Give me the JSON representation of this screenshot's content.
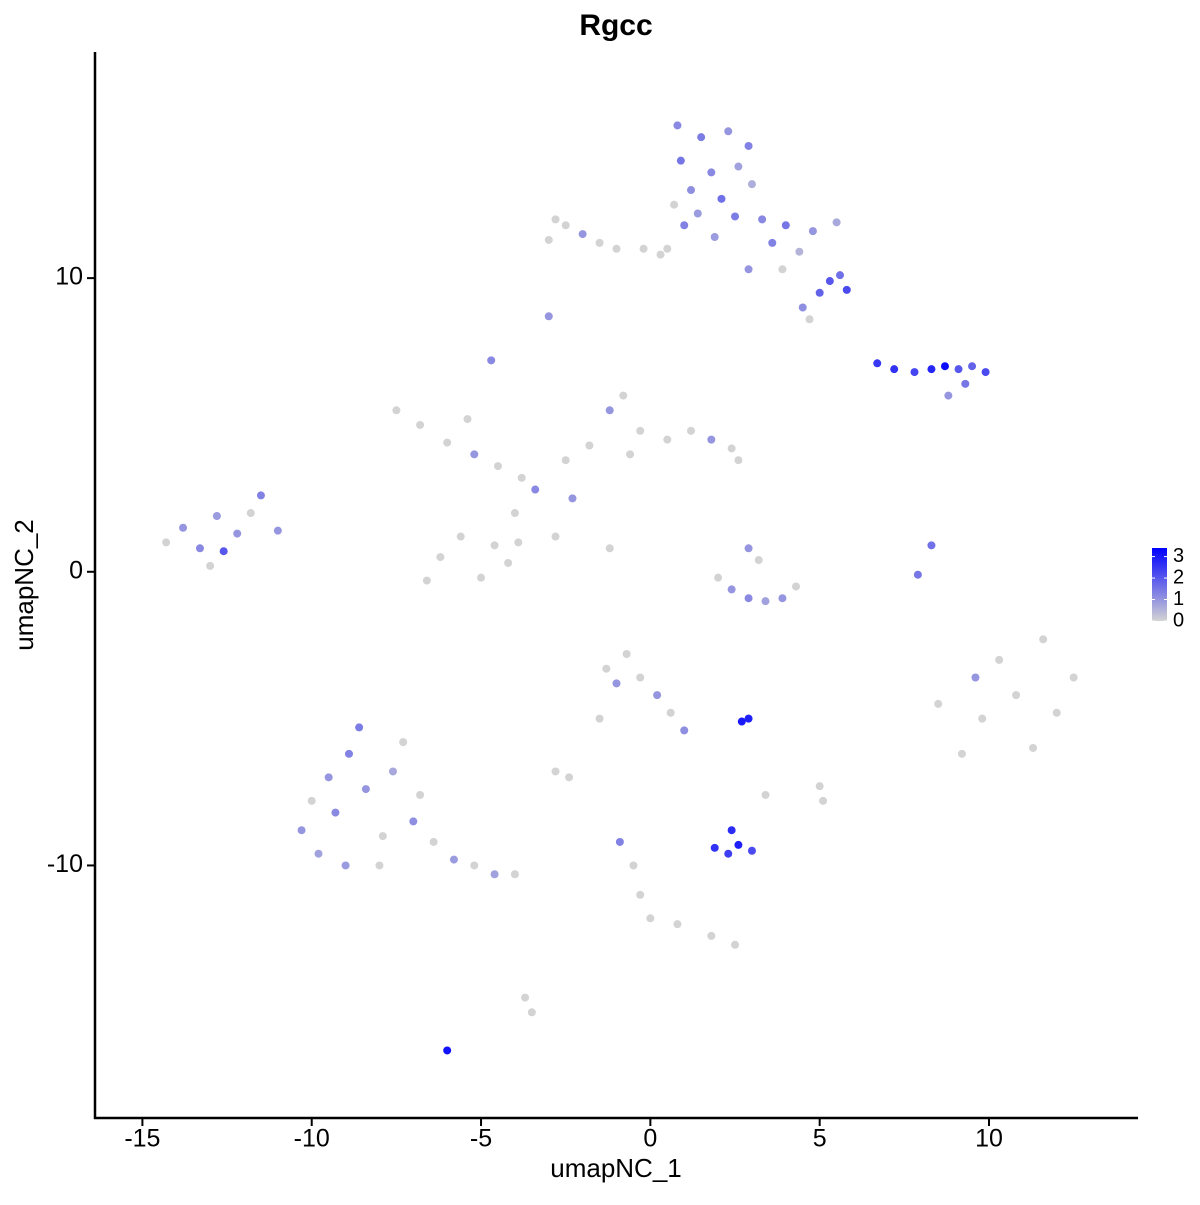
{
  "chart_data": {
    "type": "scatter",
    "title": "Rgcc",
    "x_label": "umapNC_1",
    "y_label": "umapNC_2",
    "xlim": [
      -16.4,
      14.4
    ],
    "ylim": [
      -18.6,
      17.7
    ],
    "xticks": [
      -15,
      -10,
      -5,
      0,
      5,
      10
    ],
    "yticks": [
      -10,
      0,
      10
    ],
    "grid": false,
    "colorscale": [
      "#d3d3d3",
      "#0000ff"
    ],
    "color_lim": [
      0,
      3.4
    ],
    "color_ticks": [
      0,
      1,
      2,
      3
    ],
    "x": [
      0.8,
      1.5,
      2.3,
      2.9,
      0.9,
      1.8,
      2.6,
      1.2,
      2.1,
      3.0,
      0.7,
      1.4,
      2.5,
      3.3,
      4.0,
      4.8,
      5.5,
      3.6,
      4.4,
      3.9,
      5.3,
      5.8,
      5.0,
      5.6,
      4.5,
      4.7,
      2.9,
      1.9,
      0.5,
      1.0,
      -3.0,
      -2.5,
      -2.0,
      -1.5,
      -1.0,
      -2.8,
      -0.2,
      0.3,
      -3.0,
      -4.7,
      6.7,
      7.2,
      7.8,
      8.3,
      8.7,
      9.1,
      9.5,
      9.9,
      9.3,
      8.8,
      -14.3,
      -13.8,
      -13.3,
      -12.8,
      -12.6,
      -12.2,
      -11.8,
      -11.5,
      -13.0,
      -11.0,
      -7.5,
      -6.8,
      -6.0,
      -5.2,
      -4.5,
      -3.8,
      -4.0,
      -3.9,
      -4.2,
      -5.0,
      -6.2,
      -5.6,
      -6.6,
      -4.6,
      -2.5,
      -1.8,
      -1.2,
      -0.8,
      -0.3,
      0.5,
      1.2,
      1.8,
      2.4,
      2.6,
      -0.6,
      -2.3,
      -1.2,
      -2.8,
      -3.4,
      -5.4,
      2.0,
      2.4,
      2.9,
      3.4,
      3.9,
      4.3,
      3.2,
      2.9,
      7.9,
      8.3,
      8.5,
      9.2,
      9.8,
      10.3,
      10.8,
      11.3,
      11.6,
      12.0,
      12.5,
      9.6,
      -10.3,
      -9.8,
      -9.3,
      -8.9,
      -8.4,
      -7.9,
      -7.6,
      -7.0,
      -6.4,
      -5.8,
      -5.2,
      -4.6,
      -4.0,
      -8.6,
      -9.5,
      -8.0,
      -6.8,
      -10.0,
      -9.0,
      -7.3,
      -1.3,
      -1.0,
      -0.7,
      -0.3,
      0.2,
      0.6,
      1.0,
      -1.5,
      -2.8,
      -2.4,
      2.7,
      2.9,
      1.9,
      2.3,
      2.6,
      3.0,
      2.4,
      5.0,
      5.1,
      3.4,
      -0.9,
      -0.5,
      -0.3,
      0.0,
      0.8,
      1.8,
      2.5,
      -3.7,
      -3.5,
      -6.0
    ],
    "y": [
      15.2,
      14.8,
      15.0,
      14.5,
      14.0,
      13.6,
      13.8,
      13.0,
      12.7,
      13.2,
      12.5,
      12.2,
      12.1,
      12.0,
      11.8,
      11.6,
      11.9,
      11.2,
      10.9,
      10.3,
      9.9,
      9.6,
      9.5,
      10.1,
      9.0,
      8.6,
      10.3,
      11.4,
      11.0,
      11.8,
      11.3,
      11.8,
      11.5,
      11.2,
      11.0,
      12.0,
      11.0,
      10.8,
      8.7,
      7.2,
      7.1,
      6.9,
      6.8,
      6.9,
      7.0,
      6.9,
      7.0,
      6.8,
      6.4,
      6.0,
      1.0,
      1.5,
      0.8,
      1.9,
      0.7,
      1.3,
      2.0,
      2.6,
      0.2,
      1.4,
      5.5,
      5.0,
      4.4,
      4.0,
      3.6,
      3.2,
      2.0,
      1.0,
      0.3,
      -0.2,
      0.5,
      1.2,
      -0.3,
      0.9,
      3.8,
      4.3,
      5.5,
      6.0,
      4.8,
      4.5,
      4.8,
      4.5,
      4.2,
      3.8,
      4.0,
      2.5,
      0.8,
      1.2,
      2.8,
      5.2,
      -0.2,
      -0.6,
      -0.9,
      -1.0,
      -0.9,
      -0.5,
      0.4,
      0.8,
      -0.1,
      0.9,
      -4.5,
      -6.2,
      -5.0,
      -3.0,
      -4.2,
      -6.0,
      -2.3,
      -4.8,
      -3.6,
      -3.6,
      -8.8,
      -9.6,
      -8.2,
      -6.2,
      -7.4,
      -9.0,
      -6.8,
      -8.5,
      -9.2,
      -9.8,
      -10.0,
      -10.3,
      -10.3,
      -5.3,
      -7.0,
      -10.0,
      -7.6,
      -7.8,
      -10.0,
      -5.8,
      -3.3,
      -3.8,
      -2.8,
      -3.6,
      -4.2,
      -4.8,
      -5.4,
      -5.0,
      -6.8,
      -7.0,
      -5.1,
      -5.0,
      -9.4,
      -9.6,
      -9.3,
      -9.5,
      -8.8,
      -7.3,
      -7.8,
      -7.6,
      -9.2,
      -10.0,
      -11.0,
      -11.8,
      -12.0,
      -12.4,
      -12.7,
      -14.5,
      -15.0,
      -16.3
    ],
    "values": [
      1.2,
      1.4,
      1.0,
      1.3,
      1.5,
      1.2,
      0.8,
      1.1,
      1.6,
      0.6,
      0,
      0.9,
      1.4,
      1.2,
      1.5,
      1.0,
      0.7,
      1.3,
      0.5,
      0,
      2.0,
      2.2,
      1.8,
      1.6,
      1.1,
      0,
      1.0,
      0.9,
      0,
      1.3,
      0,
      0,
      1.0,
      0,
      0,
      0,
      0,
      0,
      1.0,
      1.2,
      2.5,
      2.6,
      2.3,
      2.8,
      3.2,
      2.0,
      1.8,
      2.2,
      1.5,
      1.0,
      0,
      1.0,
      1.2,
      0.9,
      2.0,
      1.0,
      0,
      1.3,
      0,
      1.0,
      0,
      0,
      0,
      1.0,
      0,
      0,
      0,
      0,
      0,
      0,
      0,
      0,
      0,
      0,
      0,
      0,
      1.0,
      0,
      0,
      0,
      0,
      1.0,
      0,
      0,
      0,
      1.0,
      0,
      0,
      1.2,
      0,
      0,
      1.0,
      1.2,
      0.8,
      1.0,
      0,
      0,
      1.0,
      1.5,
      1.6,
      0,
      0,
      0,
      0,
      0,
      0,
      0,
      0,
      0,
      1.0,
      1.0,
      0.8,
      1.2,
      1.3,
      1.0,
      0,
      0.7,
      1.1,
      0,
      0.9,
      0,
      0.8,
      0,
      1.4,
      1.0,
      0,
      0,
      0,
      0.9,
      0,
      0,
      1.0,
      0,
      0,
      1.0,
      0,
      1.1,
      0,
      0,
      0,
      3.0,
      2.9,
      2.6,
      2.4,
      2.9,
      2.2,
      2.7,
      0,
      0,
      0,
      1.3,
      0,
      0,
      0,
      0,
      0,
      0,
      0,
      0,
      3.1
    ]
  }
}
